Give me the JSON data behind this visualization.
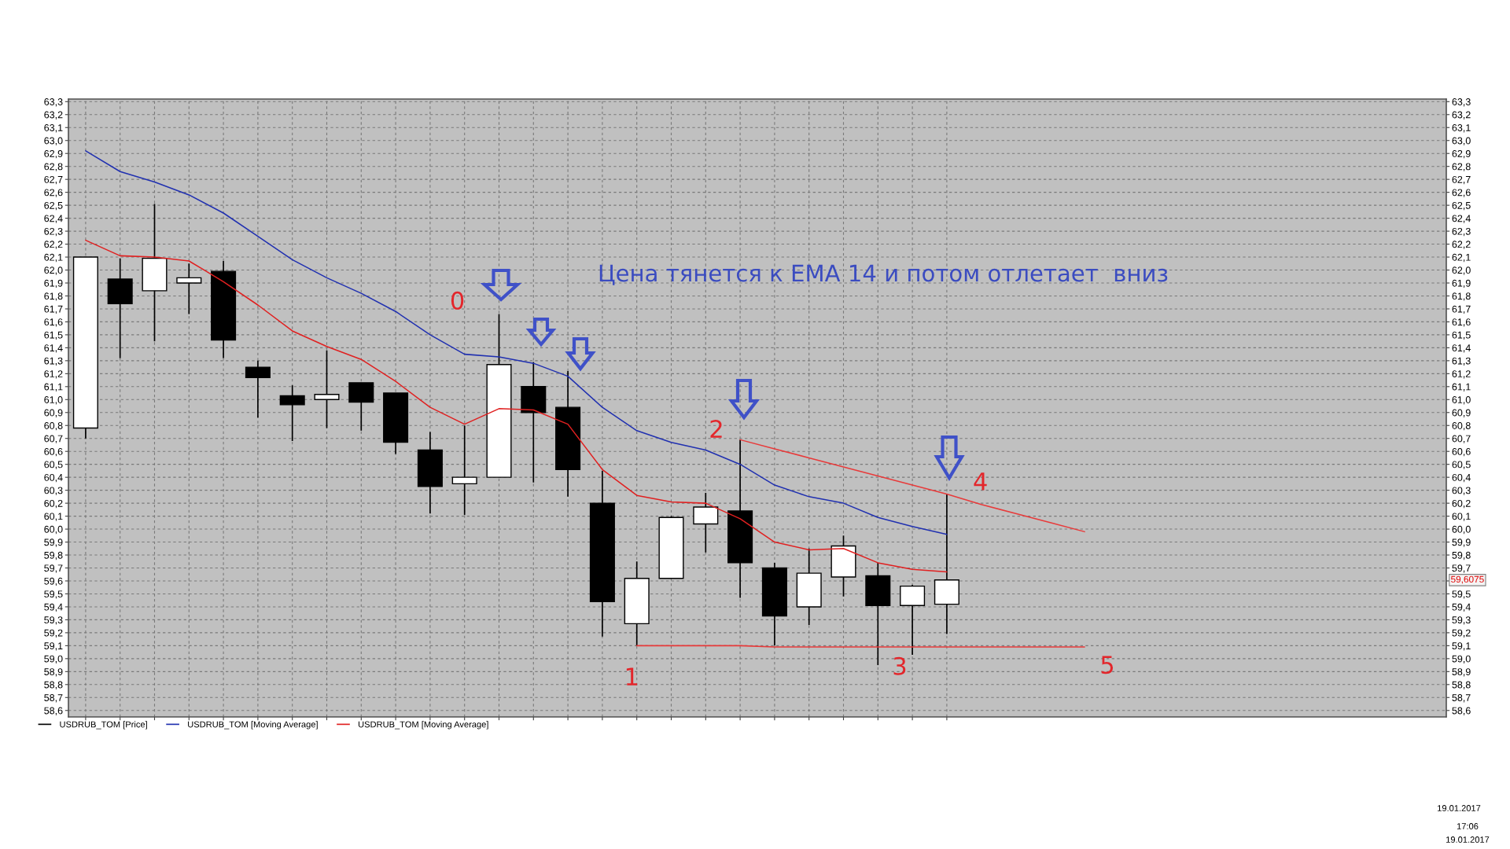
{
  "chart_data": {
    "type": "candlestick",
    "categories": [
      null,
      null,
      null,
      null,
      null,
      null,
      null,
      null,
      null,
      null,
      null,
      null,
      null,
      null,
      null,
      null,
      null,
      null,
      null,
      null,
      null,
      null,
      null,
      null,
      null,
      null,
      null,
      null,
      null,
      null,
      null,
      null,
      null,
      null,
      null,
      null,
      null,
      null,
      null,
      null
    ],
    "series": [
      {
        "name": "USDRUB_TOM [Price]",
        "color": "#000000",
        "colors": [
          "#ffffff",
          "#000000",
          "#ffffff",
          "#ffffff",
          "#000000",
          "#000000",
          "#000000",
          "#ffffff",
          "#000000",
          "#000000",
          "#000000",
          "#ffffff",
          "#ffffff",
          "#000000",
          "#000000",
          "#000000",
          "#ffffff",
          "#ffffff",
          "#ffffff",
          "#000000",
          "#000000",
          "#ffffff",
          "#ffffff",
          "#000000",
          "#ffffff",
          "#ffffff",
          null,
          null,
          null,
          null,
          null,
          null,
          null,
          null,
          null,
          null,
          null,
          null,
          null,
          null
        ],
        "ohlc": [
          [
            60.78,
            62.1,
            60.7,
            62.1
          ],
          [
            61.93,
            62.09,
            61.32,
            61.74
          ],
          [
            61.84,
            62.51,
            61.45,
            62.09
          ],
          [
            61.9,
            62.05,
            61.66,
            61.94
          ],
          [
            61.99,
            62.07,
            61.32,
            61.46
          ],
          [
            61.25,
            61.3,
            60.86,
            61.17
          ],
          [
            61.03,
            61.11,
            60.68,
            60.96
          ],
          [
            61.0,
            61.38,
            60.78,
            61.04
          ],
          [
            61.13,
            61.13,
            60.76,
            60.98
          ],
          [
            61.05,
            61.05,
            60.58,
            60.67
          ],
          [
            60.61,
            60.75,
            60.12,
            60.33
          ],
          [
            60.35,
            60.8,
            60.11,
            60.4
          ],
          [
            60.4,
            61.66,
            60.4,
            61.27
          ],
          [
            61.1,
            61.29,
            60.36,
            60.9
          ],
          [
            60.94,
            61.22,
            60.25,
            60.46
          ],
          [
            60.2,
            60.45,
            59.17,
            59.44
          ],
          [
            59.27,
            59.75,
            59.1,
            59.62
          ],
          [
            59.62,
            60.1,
            59.62,
            60.09
          ],
          [
            60.04,
            60.28,
            59.82,
            60.17
          ],
          [
            60.14,
            60.69,
            59.47,
            59.74
          ],
          [
            59.7,
            59.74,
            59.1,
            59.33
          ],
          [
            59.4,
            59.85,
            59.26,
            59.66
          ],
          [
            59.63,
            59.95,
            59.48,
            59.87
          ],
          [
            59.64,
            59.74,
            58.95,
            59.41
          ],
          [
            59.41,
            59.57,
            59.03,
            59.56
          ],
          [
            59.42,
            60.27,
            59.19,
            59.6075
          ],
          null,
          null,
          null,
          null,
          null,
          null,
          null,
          null,
          null,
          null,
          null,
          null,
          null,
          null
        ]
      },
      {
        "name": "USDRUB_TOM [Moving Average]",
        "type": "line",
        "color": "#2030b0",
        "values": [
          62.92,
          62.76,
          62.68,
          62.58,
          62.44,
          62.26,
          62.08,
          61.94,
          61.82,
          61.68,
          61.5,
          61.35,
          61.33,
          61.28,
          61.18,
          60.94,
          60.76,
          60.67,
          60.61,
          60.5,
          60.34,
          60.25,
          60.2,
          60.09,
          60.02,
          59.96,
          null,
          null,
          null,
          null,
          null,
          null,
          null,
          null,
          null,
          null,
          null,
          null,
          null,
          null
        ]
      },
      {
        "name": "USDRUB_TOM [Moving Average]",
        "type": "line",
        "color": "#e02020",
        "values": [
          62.23,
          62.11,
          62.1,
          62.07,
          61.91,
          61.73,
          61.53,
          61.41,
          61.31,
          61.14,
          60.94,
          60.81,
          60.93,
          60.92,
          60.81,
          60.46,
          60.26,
          60.21,
          60.2,
          60.08,
          59.9,
          59.84,
          59.85,
          59.74,
          59.69,
          59.67,
          null,
          null,
          null,
          null,
          null,
          null,
          null,
          null,
          null,
          null,
          null,
          null,
          null,
          null
        ]
      },
      {
        "type": "line",
        "color": "#e83a3a",
        "values": [
          null,
          null,
          null,
          null,
          null,
          null,
          null,
          null,
          null,
          null,
          null,
          null,
          null,
          null,
          null,
          null,
          null,
          null,
          null,
          60.69,
          60.62,
          60.55,
          60.48,
          60.41,
          60.34,
          60.27,
          60.19,
          60.12,
          60.05,
          59.98,
          null,
          null,
          null,
          null,
          null,
          null,
          null,
          null,
          null,
          null
        ]
      },
      {
        "type": "line",
        "color": "#e83a3a",
        "values": [
          null,
          null,
          null,
          null,
          null,
          null,
          null,
          null,
          null,
          null,
          null,
          null,
          null,
          null,
          null,
          null,
          59.1,
          59.1,
          59.1,
          59.1,
          59.09,
          59.09,
          59.09,
          59.09,
          59.09,
          59.09,
          59.09,
          59.09,
          59.09,
          59.09,
          null,
          null,
          null,
          null,
          null,
          null,
          null,
          null,
          null,
          null
        ]
      }
    ],
    "ylim": [
      58.55,
      63.32
    ],
    "yticks": [
      {
        "value": 58.6,
        "label": "58,6"
      },
      {
        "value": 58.7,
        "label": "58,7"
      },
      {
        "value": 58.8,
        "label": "58,8"
      },
      {
        "value": 58.9,
        "label": "58,9"
      },
      {
        "value": 59.0,
        "label": "59,0"
      },
      {
        "value": 59.1,
        "label": "59,1"
      },
      {
        "value": 59.2,
        "label": "59,2"
      },
      {
        "value": 59.3,
        "label": "59,3"
      },
      {
        "value": 59.4,
        "label": "59,4"
      },
      {
        "value": 59.5,
        "label": "59,5"
      },
      {
        "value": 59.6,
        "label": "59,6"
      },
      {
        "value": 59.7,
        "label": "59,7"
      },
      {
        "value": 59.8,
        "label": "59,8"
      },
      {
        "value": 59.9,
        "label": "59,9"
      },
      {
        "value": 60.0,
        "label": "60,0"
      },
      {
        "value": 60.1,
        "label": "60,1"
      },
      {
        "value": 60.2,
        "label": "60,2"
      },
      {
        "value": 60.3,
        "label": "60,3"
      },
      {
        "value": 60.4,
        "label": "60,4"
      },
      {
        "value": 60.5,
        "label": "60,5"
      },
      {
        "value": 60.6,
        "label": "60,6"
      },
      {
        "value": 60.7,
        "label": "60,7"
      },
      {
        "value": 60.8,
        "label": "60,8"
      },
      {
        "value": 60.9,
        "label": "60,9"
      },
      {
        "value": 61.0,
        "label": "61,0"
      },
      {
        "value": 61.1,
        "label": "61,1"
      },
      {
        "value": 61.2,
        "label": "61,2"
      },
      {
        "value": 61.3,
        "label": "61,3"
      },
      {
        "value": 61.4,
        "label": "61,4"
      },
      {
        "value": 61.5,
        "label": "61,5"
      },
      {
        "value": 61.6,
        "label": "61,6"
      },
      {
        "value": 61.7,
        "label": "61,7"
      },
      {
        "value": 61.8,
        "label": "61,8"
      },
      {
        "value": 61.9,
        "label": "61,9"
      },
      {
        "value": 62.0,
        "label": "62,0"
      },
      {
        "value": 62.1,
        "label": "62,1"
      },
      {
        "value": 62.2,
        "label": "62,2"
      },
      {
        "value": 62.3,
        "label": "62,3"
      },
      {
        "value": 62.4,
        "label": "62,4"
      },
      {
        "value": 62.5,
        "label": "62,5"
      },
      {
        "value": 62.6,
        "label": "62,6"
      },
      {
        "value": 62.7,
        "label": "62,7"
      },
      {
        "value": 62.8,
        "label": "62,8"
      },
      {
        "value": 62.9,
        "label": "62,9"
      },
      {
        "value": 63.0,
        "label": "63,0"
      },
      {
        "value": 63.1,
        "label": "63,1"
      },
      {
        "value": 63.2,
        "label": "63,2"
      },
      {
        "value": 63.3,
        "label": "63,3"
      }
    ],
    "y2lim": [
      58.55,
      63.32
    ],
    "y2ticks": [
      {
        "value": 58.6,
        "label": "58,6"
      },
      {
        "value": 58.7,
        "label": "58,7"
      },
      {
        "value": 58.8,
        "label": "58,8"
      },
      {
        "value": 58.9,
        "label": "58,9"
      },
      {
        "value": 59.0,
        "label": "59,0"
      },
      {
        "value": 59.1,
        "label": "59,1"
      },
      {
        "value": 59.2,
        "label": "59,2"
      },
      {
        "value": 59.3,
        "label": "59,3"
      },
      {
        "value": 59.4,
        "label": "59,4"
      },
      {
        "value": 59.5,
        "label": "59,5"
      },
      {
        "value": 59.6,
        "label": null
      },
      {
        "value": 59.7,
        "label": "59,7"
      },
      {
        "value": 59.8,
        "label": "59,8"
      },
      {
        "value": 59.9,
        "label": "59,9"
      },
      {
        "value": 60.0,
        "label": "60,0"
      },
      {
        "value": 60.1,
        "label": "60,1"
      },
      {
        "value": 60.2,
        "label": "60,2"
      },
      {
        "value": 60.3,
        "label": "60,3"
      },
      {
        "value": 60.4,
        "label": "60,4"
      },
      {
        "value": 60.5,
        "label": "60,5"
      },
      {
        "value": 60.6,
        "label": "60,6"
      },
      {
        "value": 60.7,
        "label": "60,7"
      },
      {
        "value": 60.8,
        "label": "60,8"
      },
      {
        "value": 60.9,
        "label": "60,9"
      },
      {
        "value": 61.0,
        "label": "61,0"
      },
      {
        "value": 61.1,
        "label": "61,1"
      },
      {
        "value": 61.2,
        "label": "61,2"
      },
      {
        "value": 61.3,
        "label": "61,3"
      },
      {
        "value": 61.4,
        "label": "61,4"
      },
      {
        "value": 61.5,
        "label": "61,5"
      },
      {
        "value": 61.6,
        "label": "61,6"
      },
      {
        "value": 61.7,
        "label": "61,7"
      },
      {
        "value": 61.8,
        "label": "61,8"
      },
      {
        "value": 61.9,
        "label": "61,9"
      },
      {
        "value": 62.0,
        "label": "62,0"
      },
      {
        "value": 62.1,
        "label": "62,1"
      },
      {
        "value": 62.2,
        "label": "62,2"
      },
      {
        "value": 62.3,
        "label": "62,3"
      },
      {
        "value": 62.4,
        "label": "62,4"
      },
      {
        "value": 62.5,
        "label": "62,5"
      },
      {
        "value": 62.6,
        "label": "62,6"
      },
      {
        "value": 62.7,
        "label": "62,7"
      },
      {
        "value": 62.8,
        "label": "62,8"
      },
      {
        "value": 62.9,
        "label": "62,9"
      },
      {
        "value": 63.0,
        "label": "63,0"
      },
      {
        "value": 63.1,
        "label": "63,1"
      },
      {
        "value": 63.2,
        "label": "63,2"
      },
      {
        "value": 63.3,
        "label": "63,3"
      }
    ],
    "tick_labels": "y",
    "grid": true,
    "legend": "bottom",
    "annotations": [
      "Цена тянется к EMA 14 и потом отлетает  вниз",
      "0",
      "1",
      "2",
      "3",
      "4",
      "5",
      "59,6075",
      "19.01.2017",
      "17:06",
      "19.01.2017"
    ]
  }
}
